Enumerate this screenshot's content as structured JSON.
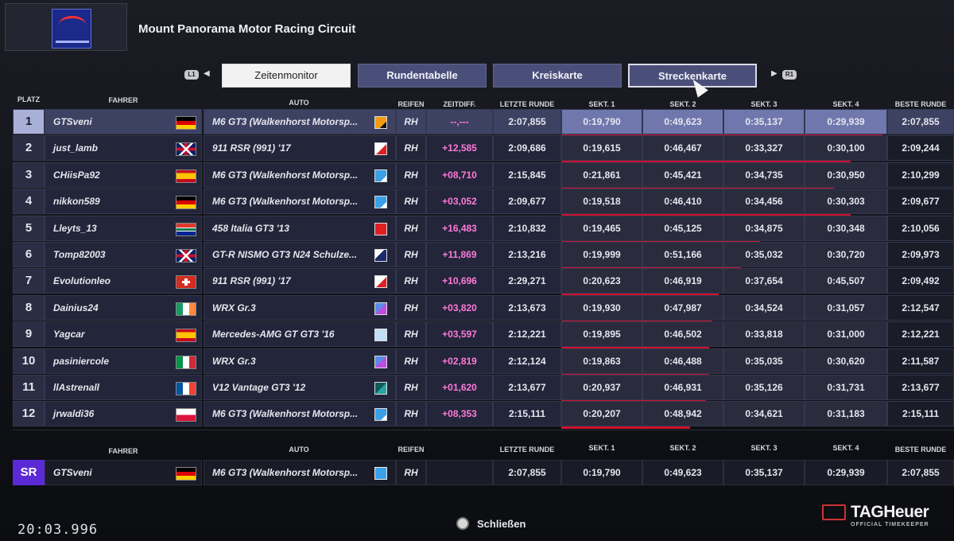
{
  "track": {
    "title": "Mount Panorama Motor Racing Circuit"
  },
  "tabs": [
    {
      "label": "Zeitenmonitor",
      "state": "active"
    },
    {
      "label": "Rundentabelle",
      "state": "normal"
    },
    {
      "label": "Kreiskarte",
      "state": "normal"
    },
    {
      "label": "Streckenkarte",
      "state": "hover"
    }
  ],
  "shoulders": {
    "left": "L1",
    "right": "R1"
  },
  "headers": {
    "platz": "PLATZ",
    "fahrer": "FAHRER",
    "auto": "AUTO",
    "reifen": "REIFEN",
    "zeitdiff": "ZEITDIFF.",
    "letzte": "LETZTE RUNDE",
    "s1": "SEKT. 1",
    "s2": "SEKT. 2",
    "s3": "SEKT. 3",
    "s4": "SEKT. 4",
    "beste": "BESTE RUNDE"
  },
  "colors": {
    "accent": "#4a4f7a",
    "diff": "#ff7ad9",
    "bar": "#d0112e",
    "sr": "#5b2ad6"
  },
  "rows": [
    {
      "pos": "1",
      "driver": "GTSveni",
      "flag": "de",
      "car": "M6 GT3 (Walkenhorst Motorsp...",
      "car_icon": "orange",
      "tyre": "RH",
      "diff": "--,---",
      "last": "2:07,855",
      "s": [
        "0:19,790",
        "0:49,623",
        "0:35,137",
        "0:29,939"
      ],
      "best": "2:07,855",
      "progress": 1.0
    },
    {
      "pos": "2",
      "driver": "just_lamb",
      "flag": "gb",
      "car": "911 RSR (991) '17",
      "car_icon": "red-white",
      "tyre": "RH",
      "diff": "+12,585",
      "last": "2:09,686",
      "s": [
        "0:19,615",
        "0:46,467",
        "0:33,327",
        "0:30,100"
      ],
      "best": "2:09,244",
      "progress": 0.9
    },
    {
      "pos": "3",
      "driver": "CHiisPa92",
      "flag": "es",
      "car": "M6 GT3 (Walkenhorst Motorsp...",
      "car_icon": "blue",
      "tyre": "RH",
      "diff": "+08,710",
      "last": "2:15,845",
      "s": [
        "0:21,861",
        "0:45,421",
        "0:34,735",
        "0:30,950"
      ],
      "best": "2:10,299",
      "progress": 0.85
    },
    {
      "pos": "4",
      "driver": "nikkon589",
      "flag": "de",
      "car": "M6 GT3 (Walkenhorst Motorsp...",
      "car_icon": "blue",
      "tyre": "RH",
      "diff": "+03,052",
      "last": "2:09,677",
      "s": [
        "0:19,518",
        "0:46,410",
        "0:34,456",
        "0:30,303"
      ],
      "best": "2:09,677",
      "progress": 0.9
    },
    {
      "pos": "5",
      "driver": "Lleyts_13",
      "flag": "za",
      "car": "458 Italia GT3 '13",
      "car_icon": "red",
      "tyre": "RH",
      "diff": "+16,483",
      "last": "2:10,832",
      "s": [
        "0:19,465",
        "0:45,125",
        "0:34,875",
        "0:30,348"
      ],
      "best": "2:10,056",
      "progress": 0.62
    },
    {
      "pos": "6",
      "driver": "Tomp82003",
      "flag": "gb",
      "car": "GT-R NISMO GT3 N24 Schulze...",
      "car_icon": "navy",
      "tyre": "RH",
      "diff": "+11,869",
      "last": "2:13,216",
      "s": [
        "0:19,999",
        "0:51,166",
        "0:35,032",
        "0:30,720"
      ],
      "best": "2:09,973",
      "progress": 0.56
    },
    {
      "pos": "7",
      "driver": "Evolutionleo",
      "flag": "ch",
      "car": "911 RSR (991) '17",
      "car_icon": "red-white",
      "tyre": "RH",
      "diff": "+10,696",
      "last": "2:29,271",
      "s": [
        "0:20,623",
        "0:46,919",
        "0:37,654",
        "0:45,507"
      ],
      "best": "2:09,492",
      "progress": 0.49
    },
    {
      "pos": "8",
      "driver": "Dainius24",
      "flag": "ie",
      "car": "WRX Gr.3",
      "car_icon": "purple",
      "tyre": "RH",
      "diff": "+03,820",
      "last": "2:13,673",
      "s": [
        "0:19,930",
        "0:47,987",
        "0:34,524",
        "0:31,057"
      ],
      "best": "2:12,547",
      "progress": 0.47
    },
    {
      "pos": "9",
      "driver": "Yagcar",
      "flag": "es",
      "car": "Mercedes-AMG GT GT3 '16",
      "car_icon": "lightblue",
      "tyre": "RH",
      "diff": "+03,597",
      "last": "2:12,221",
      "s": [
        "0:19,895",
        "0:46,502",
        "0:33,818",
        "0:31,000"
      ],
      "best": "2:12,221",
      "progress": 0.46
    },
    {
      "pos": "10",
      "driver": "pasiniercole",
      "flag": "it",
      "car": "WRX Gr.3",
      "car_icon": "purple",
      "tyre": "RH",
      "diff": "+02,819",
      "last": "2:12,124",
      "s": [
        "0:19,863",
        "0:46,488",
        "0:35,035",
        "0:30,620"
      ],
      "best": "2:11,587",
      "progress": 0.46
    },
    {
      "pos": "11",
      "driver": "llAstrenall",
      "flag": "fr",
      "car": "V12 Vantage GT3 '12",
      "car_icon": "teal",
      "tyre": "RH",
      "diff": "+01,620",
      "last": "2:13,677",
      "s": [
        "0:20,937",
        "0:46,931",
        "0:35,126",
        "0:31,731"
      ],
      "best": "2:13,677",
      "progress": 0.45
    },
    {
      "pos": "12",
      "driver": "jrwaldi36",
      "flag": "pl",
      "car": "M6 GT3 (Walkenhorst Motorsp...",
      "car_icon": "blue",
      "tyre": "RH",
      "diff": "+08,353",
      "last": "2:15,111",
      "s": [
        "0:20,207",
        "0:48,942",
        "0:34,621",
        "0:31,183"
      ],
      "best": "2:15,111",
      "progress": 0.4
    }
  ],
  "player": {
    "badge": "SR",
    "driver": "GTSveni",
    "flag": "de",
    "car": "M6 GT3 (Walkenhorst Motorsp...",
    "tyre": "RH",
    "last": "2:07,855",
    "s": [
      "0:19,790",
      "0:49,623",
      "0:35,137",
      "0:29,939"
    ],
    "best": "2:07,855"
  },
  "footer": {
    "timer": "20:03.996",
    "close_label": "Schließen",
    "brand": "TAGHeuer",
    "brand_sub": "OFFICIAL TIMEKEEPER"
  }
}
